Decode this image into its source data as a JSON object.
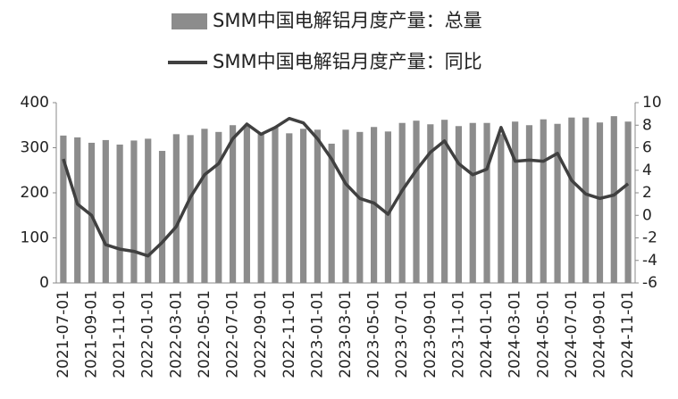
{
  "chart_data": {
    "type": "bar-line",
    "categories": [
      "2021-07-01",
      null,
      "2021-09-01",
      null,
      "2021-11-01",
      null,
      "2022-01-01",
      null,
      "2022-03-01",
      null,
      "2022-05-01",
      null,
      "2022-07-01",
      null,
      "2022-09-01",
      null,
      "2022-11-01",
      null,
      "2023-01-01",
      null,
      "2023-03-01",
      null,
      "2023-05-01",
      null,
      "2023-07-01",
      null,
      "2023-09-01",
      null,
      "2023-11-01",
      null,
      "2024-01-01",
      null,
      "2024-03-01",
      null,
      "2024-05-01",
      null,
      "2024-07-01",
      null,
      "2024-09-01",
      null,
      "2024-11-01"
    ],
    "series": [
      {
        "name": "SMM中国电解铝月度产量：总量",
        "type": "bar",
        "color": "#8c8c8c",
        "values": [
          327,
          323,
          311,
          317,
          307,
          316,
          320,
          293,
          330,
          328,
          342,
          335,
          350,
          349,
          333,
          345,
          332,
          342,
          340,
          309,
          340,
          335,
          346,
          336,
          355,
          360,
          352,
          362,
          348,
          355,
          355,
          330,
          358,
          350,
          363,
          353,
          367,
          367,
          356,
          370,
          358
        ]
      },
      {
        "name": "SMM中国电解铝月度产量：同比",
        "type": "line",
        "axis": "y2",
        "color": "#404040",
        "values": [
          5.0,
          1.0,
          0.0,
          -2.6,
          -3.0,
          -3.2,
          -3.6,
          -2.4,
          -1.0,
          1.6,
          3.6,
          4.6,
          6.8,
          8.1,
          7.2,
          7.8,
          8.6,
          8.2,
          6.8,
          5.0,
          2.8,
          1.5,
          1.1,
          0.1,
          2.2,
          4.0,
          5.6,
          6.6,
          4.6,
          3.6,
          4.1,
          7.8,
          4.8,
          4.9,
          4.8,
          5.5,
          3.1,
          1.9,
          1.5,
          1.8,
          2.8
        ]
      }
    ],
    "ylim": [
      0,
      400
    ],
    "yticks": [
      0,
      100,
      200,
      300,
      400
    ],
    "y2lim": [
      -6,
      10
    ],
    "y2ticks": [
      -6,
      -4,
      -2,
      0,
      2,
      4,
      6,
      8,
      10
    ]
  }
}
